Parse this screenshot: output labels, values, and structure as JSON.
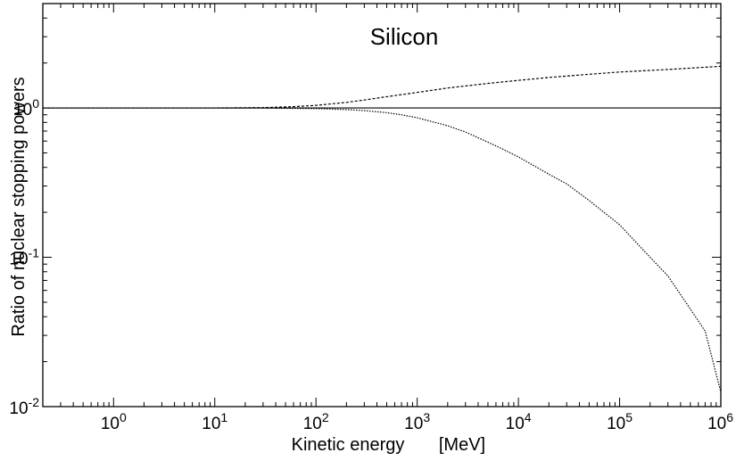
{
  "chart_data": {
    "type": "line",
    "title": "Silicon",
    "xlabel": "Kinetic energy",
    "xunit": "[MeV]",
    "ylabel": "Ratio of nuclear stopping powers",
    "xscale": "log",
    "yscale": "log",
    "xlim": [
      0.2,
      1000000
    ],
    "ylim": [
      0.01,
      5
    ],
    "grid": false,
    "xticks": [
      {
        "value": 1,
        "base": "10",
        "exp": "0"
      },
      {
        "value": 10,
        "base": "10",
        "exp": "1"
      },
      {
        "value": 100,
        "base": "10",
        "exp": "2"
      },
      {
        "value": 1000,
        "base": "10",
        "exp": "3"
      },
      {
        "value": 10000,
        "base": "10",
        "exp": "4"
      },
      {
        "value": 100000,
        "base": "10",
        "exp": "5"
      },
      {
        "value": 1000000,
        "base": "10",
        "exp": "6"
      }
    ],
    "yticks": [
      {
        "value": 0.01,
        "base": "10",
        "exp": "-2"
      },
      {
        "value": 0.1,
        "base": "10",
        "exp": "-1"
      },
      {
        "value": 1,
        "base": "10",
        "exp": "0"
      }
    ],
    "series": [
      {
        "style": "solid",
        "x": [
          0.2,
          1000000
        ],
        "y": [
          1.0,
          1.0
        ]
      },
      {
        "style": "dashed",
        "x": [
          0.2,
          1,
          10,
          30,
          60,
          100,
          200,
          300,
          500,
          1000,
          2000,
          5000,
          10000,
          20000,
          50000,
          100000,
          300000,
          1000000
        ],
        "y": [
          1.0,
          1.0,
          1.0,
          1.005,
          1.02,
          1.04,
          1.09,
          1.13,
          1.19,
          1.27,
          1.36,
          1.46,
          1.53,
          1.6,
          1.68,
          1.74,
          1.81,
          1.9
        ]
      },
      {
        "style": "dotted",
        "x": [
          0.2,
          1,
          10,
          30,
          100,
          200,
          300,
          500,
          700,
          1000,
          2000,
          3000,
          5000,
          7000,
          10000,
          20000,
          30000,
          50000,
          70000,
          100000,
          200000,
          300000,
          500000,
          700000,
          1000000
        ],
        "y": [
          1.0,
          1.0,
          1.0,
          0.998,
          0.99,
          0.975,
          0.96,
          0.93,
          0.9,
          0.86,
          0.76,
          0.69,
          0.59,
          0.53,
          0.47,
          0.36,
          0.31,
          0.24,
          0.2,
          0.165,
          0.1,
          0.075,
          0.045,
          0.032,
          0.0125
        ]
      }
    ]
  }
}
